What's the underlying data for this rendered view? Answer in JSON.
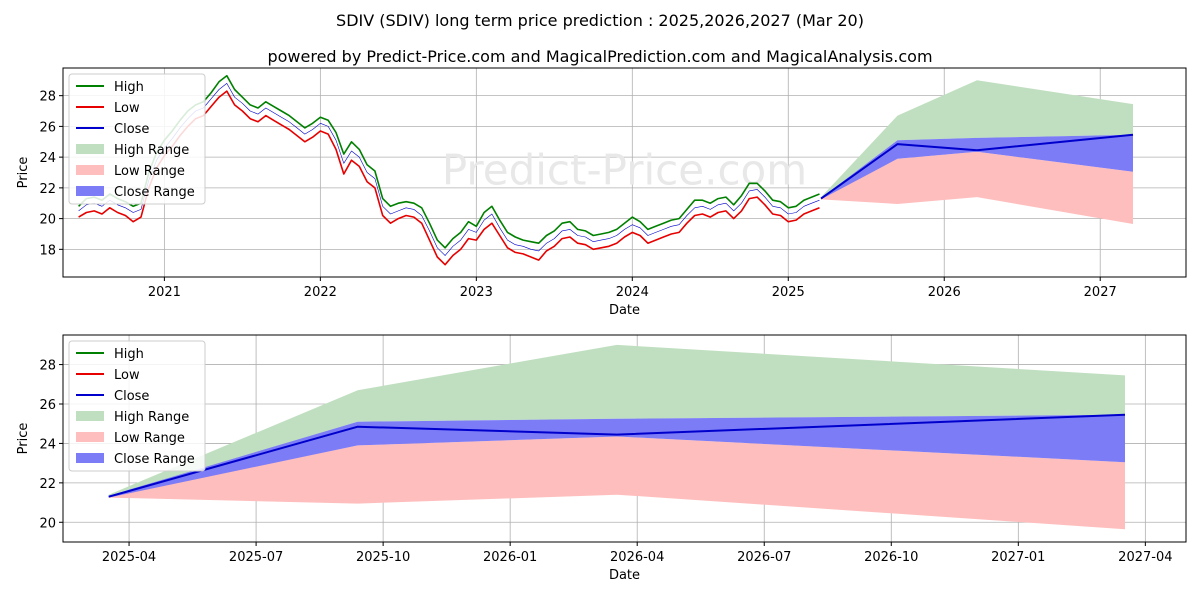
{
  "title": "SDIV (SDIV) long term price prediction : 2025,2026,2027 (Mar 20)",
  "subtitle": "powered by Predict-Price.com and MagicalPrediction.com and MagicalAnalysis.com",
  "watermark": "Predict-Price.com",
  "colors": {
    "high": "#008000",
    "low": "#e60000",
    "close": "#0000cc",
    "high_range": "#c0dfc0",
    "low_range": "#ffbebe",
    "close_range": "#7c7cf6",
    "grid": "#b0b0b0"
  },
  "legend": [
    {
      "label": "High",
      "type": "line",
      "color_key": "high"
    },
    {
      "label": "Low",
      "type": "line",
      "color_key": "low"
    },
    {
      "label": "Close",
      "type": "line",
      "color_key": "close"
    },
    {
      "label": "High Range",
      "type": "patch",
      "color_key": "high_range"
    },
    {
      "label": "Low Range",
      "type": "patch",
      "color_key": "low_range"
    },
    {
      "label": "Close Range",
      "type": "patch",
      "color_key": "close_range"
    }
  ],
  "chart_data": [
    {
      "type": "line",
      "panel": "top",
      "xlabel": "Date",
      "ylabel": "Price",
      "xlim": [
        2020.35,
        2027.55
      ],
      "ylim": [
        16.2,
        29.8
      ],
      "xticks": [
        2021,
        2022,
        2023,
        2024,
        2025,
        2026,
        2027
      ],
      "xtick_labels": [
        "2021",
        "2022",
        "2023",
        "2024",
        "2025",
        "2026",
        "2027"
      ],
      "yticks": [
        18,
        20,
        22,
        24,
        26,
        28
      ],
      "grid": true,
      "legend_position": "upper-left",
      "history": {
        "x": [
          2020.45,
          2020.5,
          2020.55,
          2020.6,
          2020.65,
          2020.7,
          2020.75,
          2020.8,
          2020.85,
          2020.9,
          2020.95,
          2021.0,
          2021.05,
          2021.1,
          2021.15,
          2021.2,
          2021.25,
          2021.3,
          2021.35,
          2021.4,
          2021.45,
          2021.5,
          2021.55,
          2021.6,
          2021.65,
          2021.7,
          2021.75,
          2021.8,
          2021.85,
          2021.9,
          2021.95,
          2022.0,
          2022.05,
          2022.1,
          2022.15,
          2022.2,
          2022.25,
          2022.3,
          2022.35,
          2022.4,
          2022.45,
          2022.5,
          2022.55,
          2022.6,
          2022.65,
          2022.7,
          2022.75,
          2022.8,
          2022.85,
          2022.9,
          2022.95,
          2023.0,
          2023.05,
          2023.1,
          2023.15,
          2023.2,
          2023.25,
          2023.3,
          2023.35,
          2023.4,
          2023.45,
          2023.5,
          2023.55,
          2023.6,
          2023.65,
          2023.7,
          2023.75,
          2023.8,
          2023.85,
          2023.9,
          2023.95,
          2024.0,
          2024.05,
          2024.1,
          2024.15,
          2024.2,
          2024.25,
          2024.3,
          2024.35,
          2024.4,
          2024.45,
          2024.5,
          2024.55,
          2024.6,
          2024.65,
          2024.7,
          2024.75,
          2024.8,
          2024.85,
          2024.9,
          2024.95,
          2025.0,
          2025.05,
          2025.1,
          2025.15,
          2025.2
        ],
        "close": [
          20.5,
          20.9,
          21.0,
          20.8,
          21.2,
          20.9,
          20.7,
          20.4,
          20.6,
          22.5,
          23.8,
          24.6,
          25.2,
          25.9,
          26.5,
          27.0,
          27.2,
          27.8,
          28.4,
          28.8,
          27.9,
          27.5,
          27.0,
          26.8,
          27.2,
          26.9,
          26.6,
          26.3,
          25.9,
          25.5,
          25.8,
          26.2,
          26.0,
          25.1,
          23.6,
          24.4,
          24.0,
          23.0,
          22.6,
          20.8,
          20.3,
          20.5,
          20.7,
          20.6,
          20.2,
          19.2,
          18.1,
          17.6,
          18.2,
          18.6,
          19.3,
          19.1,
          19.9,
          20.3,
          19.4,
          18.6,
          18.3,
          18.2,
          18.0,
          17.9,
          18.4,
          18.7,
          19.2,
          19.3,
          18.9,
          18.8,
          18.5,
          18.6,
          18.7,
          18.9,
          19.3,
          19.6,
          19.4,
          18.9,
          19.1,
          19.3,
          19.5,
          19.6,
          20.2,
          20.7,
          20.8,
          20.6,
          20.9,
          21.0,
          20.5,
          21.0,
          21.8,
          21.9,
          21.4,
          20.8,
          20.7,
          20.3,
          20.4,
          20.8,
          21.0,
          21.2
        ],
        "high": [
          20.8,
          21.3,
          21.4,
          21.2,
          21.6,
          21.3,
          21.1,
          20.8,
          21.0,
          23.0,
          24.3,
          25.1,
          25.7,
          26.4,
          27.0,
          27.4,
          27.6,
          28.2,
          28.9,
          29.3,
          28.4,
          27.9,
          27.4,
          27.2,
          27.6,
          27.3,
          27.0,
          26.7,
          26.3,
          25.9,
          26.2,
          26.6,
          26.4,
          25.6,
          24.2,
          25.0,
          24.5,
          23.5,
          23.1,
          21.3,
          20.8,
          21.0,
          21.1,
          21.0,
          20.7,
          19.7,
          18.6,
          18.1,
          18.7,
          19.1,
          19.8,
          19.5,
          20.4,
          20.8,
          19.9,
          19.1,
          18.8,
          18.6,
          18.5,
          18.4,
          18.9,
          19.2,
          19.7,
          19.8,
          19.3,
          19.2,
          18.9,
          19.0,
          19.1,
          19.3,
          19.7,
          20.1,
          19.8,
          19.3,
          19.5,
          19.7,
          19.9,
          20.0,
          20.6,
          21.2,
          21.2,
          21.0,
          21.3,
          21.4,
          20.9,
          21.5,
          22.3,
          22.3,
          21.8,
          21.2,
          21.1,
          20.7,
          20.8,
          21.2,
          21.4,
          21.6
        ],
        "low": [
          20.1,
          20.4,
          20.5,
          20.3,
          20.7,
          20.4,
          20.2,
          19.8,
          20.1,
          22.0,
          23.3,
          24.1,
          24.7,
          25.4,
          26.0,
          26.5,
          26.7,
          27.3,
          27.9,
          28.3,
          27.4,
          27.0,
          26.5,
          26.3,
          26.7,
          26.4,
          26.1,
          25.8,
          25.4,
          25.0,
          25.3,
          25.7,
          25.5,
          24.5,
          22.9,
          23.8,
          23.4,
          22.4,
          22.0,
          20.2,
          19.7,
          20.0,
          20.2,
          20.1,
          19.7,
          18.6,
          17.5,
          17.0,
          17.6,
          18.0,
          18.7,
          18.6,
          19.3,
          19.7,
          18.9,
          18.1,
          17.8,
          17.7,
          17.5,
          17.3,
          17.9,
          18.2,
          18.7,
          18.8,
          18.4,
          18.3,
          18.0,
          18.1,
          18.2,
          18.4,
          18.8,
          19.1,
          18.9,
          18.4,
          18.6,
          18.8,
          19.0,
          19.1,
          19.7,
          20.2,
          20.3,
          20.1,
          20.4,
          20.5,
          20.0,
          20.5,
          21.3,
          21.4,
          20.9,
          20.3,
          20.2,
          19.8,
          19.9,
          20.3,
          20.5,
          20.7
        ]
      },
      "forecast": {
        "x": [
          2025.21,
          2025.7,
          2026.21,
          2027.21
        ],
        "close": [
          21.3,
          24.85,
          24.45,
          25.45
        ],
        "high_range_upper": [
          21.4,
          26.7,
          29.0,
          27.45
        ],
        "high_range_lower": [
          21.3,
          25.1,
          25.25,
          25.45
        ],
        "close_range_upper": [
          21.35,
          25.1,
          25.25,
          25.45
        ],
        "close_range_lower": [
          21.25,
          23.9,
          24.35,
          23.05
        ],
        "low_range_upper": [
          21.3,
          23.9,
          24.35,
          23.05
        ],
        "low_range_lower": [
          21.25,
          20.95,
          21.4,
          19.65
        ]
      }
    },
    {
      "type": "line",
      "panel": "bottom",
      "xlabel": "Date",
      "ylabel": "Price",
      "xlim": [
        2025.12,
        2027.33
      ],
      "ylim": [
        19.0,
        29.5
      ],
      "xticks": [
        2025.25,
        2025.5,
        2025.75,
        2026.0,
        2026.25,
        2026.5,
        2026.75,
        2027.0,
        2027.25
      ],
      "xtick_labels": [
        "2025-04",
        "2025-07",
        "2025-10",
        "2026-01",
        "2026-04",
        "2026-07",
        "2026-10",
        "2027-01",
        "2027-04"
      ],
      "yticks": [
        20,
        22,
        24,
        26,
        28
      ],
      "grid": true,
      "legend_position": "upper-left",
      "forecast": {
        "x": [
          2025.21,
          2025.7,
          2026.21,
          2027.21
        ],
        "close": [
          21.3,
          24.85,
          24.45,
          25.45
        ],
        "high_range_upper": [
          21.4,
          26.7,
          29.0,
          27.45
        ],
        "high_range_lower": [
          21.3,
          25.1,
          25.25,
          25.45
        ],
        "close_range_upper": [
          21.35,
          25.1,
          25.25,
          25.45
        ],
        "close_range_lower": [
          21.25,
          23.9,
          24.35,
          23.05
        ],
        "low_range_upper": [
          21.3,
          23.9,
          24.35,
          23.05
        ],
        "low_range_lower": [
          21.25,
          20.95,
          21.4,
          19.65
        ]
      }
    }
  ]
}
